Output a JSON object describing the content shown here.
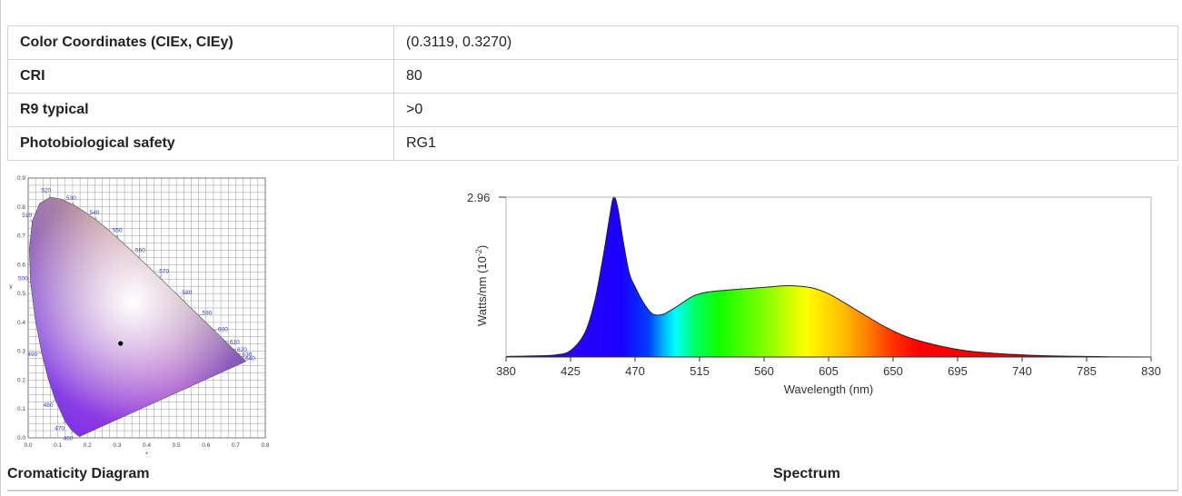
{
  "specs": [
    {
      "label": "Color Coordinates (CIEx, CIEy)",
      "value": "(0.3119, 0.3270)"
    },
    {
      "label": "CRI",
      "value": "80"
    },
    {
      "label": "R9 typical",
      "value": ">0"
    },
    {
      "label": "Photobiological safety",
      "value": "RG1"
    }
  ],
  "captions": {
    "chromaticity": "Cromaticity Diagram",
    "spectrum": "Spectrum"
  },
  "chart_data": [
    {
      "type": "scatter",
      "xlabel": "x",
      "ylabel": "y",
      "xlim": [
        0.0,
        0.8
      ],
      "ylim": [
        0.0,
        0.9
      ],
      "x_ticks": [
        "0.0",
        "0.1",
        "0.2",
        "0.3",
        "0.4",
        "0.5",
        "0.6",
        "0.7",
        "0.8"
      ],
      "y_ticks": [
        "0.0",
        "0.1",
        "0.2",
        "0.3",
        "0.4",
        "0.5",
        "0.6",
        "0.7",
        "0.8",
        "0.9"
      ],
      "grid": true,
      "wavelength_labels": [
        "460",
        "470",
        "480",
        "490",
        "500",
        "510",
        "520",
        "530",
        "540",
        "550",
        "560",
        "570",
        "580",
        "590",
        "600",
        "610",
        "620",
        "630",
        "640"
      ],
      "point": {
        "x": 0.3119,
        "y": 0.327
      }
    },
    {
      "type": "area",
      "xlabel": "Wavelength (nm)",
      "ylabel": "Watts/nm (10",
      "ylabel_exp": "-2",
      "ylabel_close": ")",
      "y_tick": "2.96",
      "ylim": [
        0,
        2.96
      ],
      "xlim": [
        380,
        830
      ],
      "x_ticks": [
        "380",
        "425",
        "470",
        "515",
        "560",
        "605",
        "650",
        "695",
        "740",
        "785",
        "830"
      ],
      "x": [
        380,
        400,
        415,
        425,
        435,
        442,
        448,
        452,
        455,
        458,
        462,
        466,
        470,
        476,
        482,
        488,
        492,
        500,
        510,
        520,
        535,
        550,
        565,
        575,
        585,
        595,
        605,
        615,
        630,
        645,
        660,
        680,
        700,
        720,
        740,
        760,
        785,
        800,
        830
      ],
      "y": [
        0.01,
        0.02,
        0.04,
        0.12,
        0.45,
        1.05,
        1.9,
        2.55,
        2.96,
        2.75,
        2.1,
        1.55,
        1.3,
        1.0,
        0.8,
        0.78,
        0.82,
        0.95,
        1.12,
        1.2,
        1.24,
        1.27,
        1.3,
        1.32,
        1.31,
        1.27,
        1.17,
        1.02,
        0.78,
        0.55,
        0.37,
        0.22,
        0.12,
        0.07,
        0.04,
        0.02,
        0.01,
        0.005,
        0.0
      ]
    }
  ]
}
